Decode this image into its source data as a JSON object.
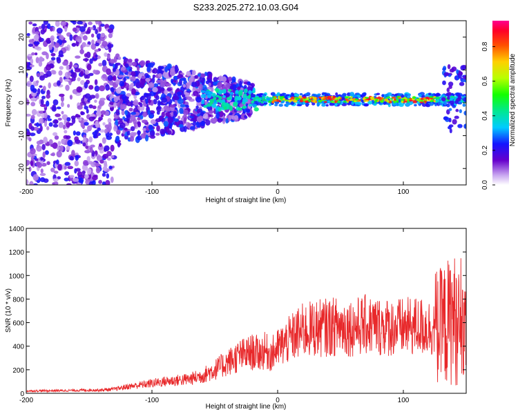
{
  "figure_title": "S233.2025.272.10.03.G04",
  "chart_data": [
    {
      "type": "heatmap",
      "title": "S233.2025.272.10.03.G04",
      "xlabel": "Height of straight line (km)",
      "ylabel": "Frequency (Hz)",
      "xlim": [
        -200,
        150
      ],
      "ylim": [
        -25,
        25
      ],
      "xticks": [
        -200,
        -100,
        0,
        100
      ],
      "yticks": [
        -20,
        -10,
        0,
        10,
        20
      ],
      "colorbar": {
        "label": "Normalized spectral amplitude",
        "range": [
          0,
          0.95
        ],
        "ticks": [
          0.0,
          0.2,
          0.4,
          0.6,
          0.8
        ]
      },
      "features": [
        {
          "name": "noise-field",
          "x_range": [
            -200,
            -130
          ],
          "freq_range": [
            -25,
            25
          ],
          "amplitude": 0.15
        },
        {
          "name": "transition-band",
          "x_range": [
            -130,
            -20
          ],
          "freq_range": [
            -10,
            12
          ],
          "amplitude": 0.25
        },
        {
          "name": "signal-line",
          "x_range": [
            -20,
            150
          ],
          "freq_center": 1,
          "amplitude": 0.85
        }
      ]
    },
    {
      "type": "line",
      "title": "",
      "xlabel": "Height of straight line (km)",
      "ylabel": "SNR (10 * v/v)",
      "xlim": [
        -200,
        150
      ],
      "ylim": [
        0,
        1400
      ],
      "xticks": [
        -200,
        -100,
        0,
        100
      ],
      "yticks": [
        0,
        200,
        400,
        600,
        800,
        1000,
        1200,
        1400
      ],
      "color": "#e8282a",
      "series": [
        {
          "name": "SNR",
          "x": [
            -200,
            -180,
            -160,
            -140,
            -130,
            -120,
            -110,
            -100,
            -90,
            -80,
            -70,
            -60,
            -50,
            -40,
            -30,
            -25,
            -20,
            -15,
            -10,
            -5,
            0,
            5,
            10,
            15,
            20,
            25,
            30,
            40,
            50,
            60,
            70,
            80,
            90,
            100,
            110,
            120,
            130,
            135,
            140,
            145,
            150
          ],
          "y": [
            20,
            22,
            25,
            28,
            35,
            55,
            70,
            85,
            100,
            110,
            120,
            150,
            200,
            260,
            320,
            330,
            350,
            340,
            360,
            330,
            380,
            420,
            460,
            500,
            530,
            540,
            550,
            560,
            570,
            560,
            580,
            570,
            560,
            560,
            570,
            560,
            560,
            600,
            650,
            500,
            450
          ]
        }
      ]
    }
  ]
}
